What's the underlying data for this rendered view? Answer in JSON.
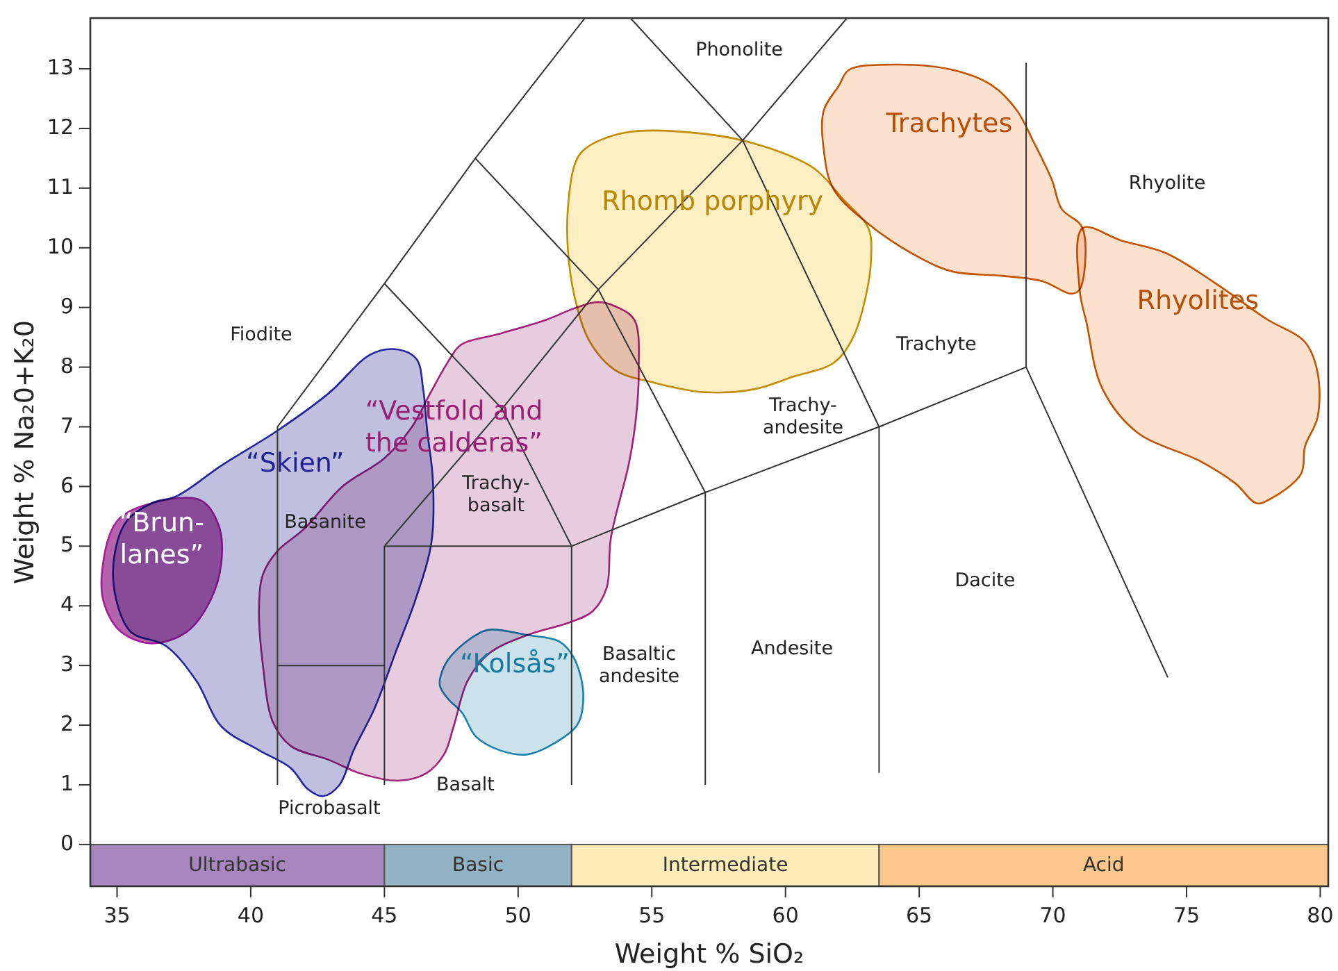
{
  "chart_data": {
    "type": "line",
    "xlabel": "Weight % SiO₂",
    "ylabel": "Weight % Na₂0+K₂0",
    "xlim": [
      34,
      80.3
    ],
    "ylim": [
      -0.7,
      13.85
    ],
    "xticks": [
      35,
      40,
      45,
      50,
      55,
      60,
      65,
      70,
      75,
      80
    ],
    "yticks": [
      0,
      1,
      2,
      3,
      4,
      5,
      6,
      7,
      8,
      9,
      10,
      11,
      12,
      13
    ],
    "series": [
      {
        "type": "area",
        "name": "“Brun-\nlanes”",
        "color": "#a8489f",
        "x": [
          34.43,
          35.0,
          36.3,
          38.12,
          38.8,
          38.9,
          38.49,
          37.6,
          36.3,
          35.16,
          34.53
        ],
        "values": [
          4.53,
          5.42,
          5.72,
          5.77,
          5.35,
          4.72,
          4.09,
          3.56,
          3.37,
          3.56,
          4.02
        ]
      },
      {
        "type": "area",
        "name": "“Skien”",
        "color": "#b4b4da",
        "x": [
          37.24,
          38.9,
          40.98,
          42.91,
          44.47,
          45.41,
          46.19,
          46.45,
          46.6,
          46.81,
          46.76,
          46.19,
          45.41,
          44.63,
          43.85,
          43.32,
          42.7,
          42.13,
          41.5,
          40.31,
          38.9,
          37.97,
          36.82,
          35.52,
          34.95,
          34.9,
          35.36,
          36.3
        ],
        "values": [
          5.84,
          6.35,
          6.93,
          7.56,
          8.21,
          8.3,
          8.14,
          7.63,
          6.93,
          6.12,
          5.07,
          4.14,
          3.21,
          2.28,
          1.58,
          1.0,
          0.81,
          0.93,
          1.28,
          1.58,
          1.98,
          2.74,
          3.33,
          3.56,
          4.14,
          4.84,
          5.42,
          5.72
        ]
      },
      {
        "type": "area",
        "name": "“Kolsås”",
        "color": "#c2dde8",
        "x": [
          47.23,
          47.59,
          48.42,
          48.94,
          50.35,
          51.55,
          52.07,
          52.43,
          52.27,
          51.75,
          50.35,
          49.31,
          48.42,
          47.9,
          47.38,
          47.07
        ],
        "values": [
          2.98,
          3.21,
          3.51,
          3.6,
          3.51,
          3.4,
          3.14,
          2.58,
          2.05,
          1.81,
          1.51,
          1.58,
          1.81,
          2.21,
          2.44,
          2.67
        ]
      },
      {
        "type": "area",
        "name": "“Vestfold and\nthe calderas”",
        "color": "#e3c3d9",
        "x": [
          47.85,
          49.31,
          51.03,
          52.07,
          52.95,
          53.63,
          54.35,
          54.51,
          54.41,
          54.15,
          53.47,
          53.31,
          52.79,
          51.91,
          50.35,
          48.94,
          48.11,
          47.59,
          47.23,
          46.55,
          45.51,
          44.11,
          42.91,
          41.5,
          40.83,
          40.46,
          40.31,
          40.46,
          40.98,
          42.02,
          43.43,
          44.99,
          46.03,
          46.71,
          47.38
        ],
        "values": [
          8.37,
          8.56,
          8.79,
          8.98,
          9.09,
          9.02,
          8.79,
          7.93,
          7.16,
          6.4,
          5.14,
          4.3,
          3.91,
          3.72,
          3.51,
          3.21,
          2.74,
          1.98,
          1.51,
          1.19,
          1.07,
          1.19,
          1.42,
          1.65,
          2.05,
          2.98,
          3.98,
          4.53,
          4.91,
          5.3,
          6.0,
          6.47,
          7.0,
          7.56,
          8.09
        ]
      },
      {
        "type": "area",
        "name": "Rhomb porphyry",
        "color": "#fdebb9",
        "x": [
          53.99,
          56.96,
          59.19,
          61.07,
          62.16,
          63.1,
          63.2,
          62.99,
          62.52,
          61.8,
          60.29,
          58.83,
          56.96,
          55.08,
          53.63,
          52.69,
          52.12,
          51.86,
          51.86,
          52.12,
          52.48
        ],
        "values": [
          11.93,
          11.91,
          11.7,
          11.33,
          10.81,
          10.33,
          9.81,
          9.16,
          8.49,
          8.07,
          7.84,
          7.63,
          7.58,
          7.74,
          7.95,
          8.42,
          9.16,
          9.98,
          10.65,
          11.4,
          11.65
        ]
      },
      {
        "type": "area",
        "name": "Trachytes",
        "color": "#fbdcc5",
        "x": [
          62.37,
          64.03,
          66.27,
          67.73,
          68.66,
          69.24,
          69.96,
          70.33,
          71.11,
          71.0,
          70.69,
          69.6,
          68.09,
          66.27,
          65.12,
          63.3,
          61.8,
          61.43,
          61.43,
          62.0
        ],
        "values": [
          12.98,
          13.07,
          12.98,
          12.72,
          12.3,
          11.81,
          11.14,
          10.65,
          10.33,
          9.3,
          9.23,
          9.44,
          9.53,
          9.6,
          9.81,
          10.33,
          10.98,
          11.65,
          12.3,
          12.72
        ]
      },
      {
        "type": "area",
        "name": "Rhyolites",
        "color": "#fbdcc5",
        "x": [
          71.11,
          72.57,
          74.23,
          76.1,
          77.98,
          79.43,
          79.9,
          79.9,
          79.43,
          79.28,
          78.13,
          77.61,
          76.83,
          75.53,
          73.14,
          71.84,
          71.26,
          71.0
        ],
        "values": [
          10.33,
          10.12,
          9.91,
          9.4,
          8.81,
          8.42,
          7.91,
          7.16,
          6.67,
          6.21,
          5.79,
          5.72,
          6.05,
          6.42,
          6.91,
          7.65,
          8.74,
          9.3
        ]
      },
      {
        "type": "line",
        "color": "#333333",
        "x": [
          41,
          45
        ],
        "values": [
          3,
          3
        ]
      },
      {
        "type": "line",
        "color": "#333333",
        "x": [
          69,
          69,
          74.3
        ],
        "values": [
          13.1,
          8,
          2.8
        ]
      },
      {
        "type": "line",
        "color": "#333333",
        "x": [
          45,
          52,
          57,
          63.5,
          69
        ],
        "values": [
          5,
          5,
          5.9,
          7,
          8
        ]
      },
      {
        "type": "line",
        "color": "#333333",
        "x": [
          41,
          41,
          45,
          48.4,
          52.5
        ],
        "values": [
          1,
          7,
          9.4,
          11.5,
          13.85
        ]
      },
      {
        "type": "line",
        "color": "#333333",
        "x": [
          45,
          49.4,
          52,
          52
        ],
        "values": [
          9.4,
          7.3,
          5,
          1
        ]
      },
      {
        "type": "line",
        "color": "#333333",
        "x": [
          48.4,
          53,
          57,
          57
        ],
        "values": [
          11.5,
          9.3,
          5.9,
          1
        ]
      },
      {
        "type": "line",
        "color": "#333333",
        "x": [
          45,
          45,
          49.4,
          53,
          58.4,
          62.3
        ],
        "values": [
          1,
          5,
          7.3,
          9.3,
          11.8,
          13.85
        ]
      },
      {
        "type": "line",
        "color": "#333333",
        "x": [
          54.2,
          58.4,
          63.5,
          63.5
        ],
        "values": [
          13.85,
          11.8,
          7,
          1.2
        ]
      }
    ],
    "annotations": [
      "Phonolite",
      "Rhyolite",
      "Trachyte",
      "Trachy-\nandesite",
      "Fiodite",
      "Basanite",
      "Trachy-\nbasalt",
      "Basaltic\nandesite",
      "Andesite",
      "Dacite",
      "Picrobasalt",
      "Basalt"
    ],
    "bands": [
      {
        "axis": "x",
        "from": 34,
        "to": 45,
        "label": "Ultrabasic",
        "color": "#a886be"
      },
      {
        "axis": "x",
        "from": 45,
        "to": 52,
        "label": "Basic",
        "color": "#90b2c2"
      },
      {
        "axis": "x",
        "from": 52,
        "to": 63.5,
        "label": "Intermediate",
        "color": "#fdebb8"
      },
      {
        "axis": "x",
        "from": 63.5,
        "to": 80.3,
        "label": "Acid",
        "color": "#fbc78b"
      }
    ]
  }
}
